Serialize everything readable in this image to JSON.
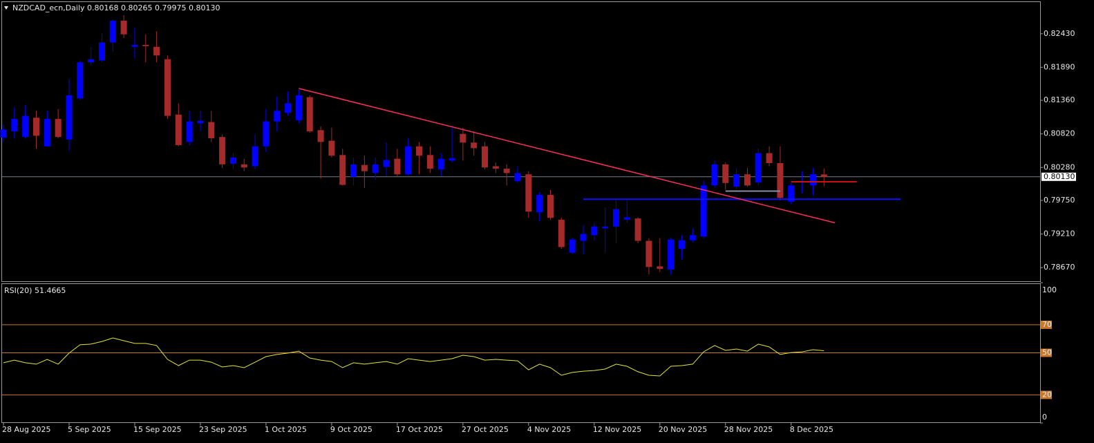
{
  "chart_data": [
    {
      "type": "candlestick",
      "title": "NZDCAD_ecn,Daily  0.80168 0.80265 0.79975 0.80130",
      "categories": [
        "28 Aug 2025",
        null,
        null,
        null,
        null,
        null,
        "5 Sep 2025",
        null,
        null,
        null,
        null,
        null,
        "15 Sep 2025",
        null,
        null,
        null,
        null,
        null,
        "23 Sep 2025",
        null,
        null,
        null,
        null,
        null,
        "1 Oct 2025",
        null,
        null,
        null,
        null,
        null,
        "9 Oct 2025",
        null,
        null,
        null,
        null,
        null,
        "17 Oct 2025",
        null,
        null,
        null,
        null,
        null,
        "27 Oct 2025",
        null,
        null,
        null,
        null,
        null,
        "4 Nov 2025",
        null,
        null,
        null,
        null,
        null,
        "12 Nov 2025",
        null,
        null,
        null,
        null,
        null,
        "20 Nov 2025",
        null,
        null,
        null,
        null,
        null,
        "28 Nov 2025",
        null,
        null,
        null,
        null,
        null,
        "8 Dec 2025",
        null,
        null,
        null
      ],
      "open": [
        0.8076,
        0.8086,
        0.8077,
        0.8108,
        0.8062,
        0.8106,
        0.8073,
        0.8139,
        0.8197,
        0.82,
        0.8229,
        0.8264,
        0.8222,
        0.8225,
        0.8222,
        0.8202,
        0.8113,
        0.8069,
        0.8099,
        0.8101,
        0.8077,
        0.8034,
        0.8033,
        0.803,
        0.8062,
        0.8102,
        0.8116,
        0.8104,
        0.8141,
        0.8088,
        0.8071,
        0.8048,
        0.8013,
        0.8032,
        0.8019,
        0.8029,
        0.8042,
        0.8017,
        0.8062,
        0.8048,
        0.8025,
        0.8039,
        0.8082,
        0.8068,
        0.8062,
        0.803,
        0.8026,
        0.8006,
        0.8017,
        0.7956,
        0.7984,
        0.7944,
        0.7891,
        0.791,
        0.7919,
        0.793,
        0.7933,
        0.7944,
        0.7946,
        0.791,
        0.7869,
        0.7864,
        0.7897,
        0.7911,
        0.7917,
        0.7999,
        0.8033,
        0.7997,
        0.8017,
        0.8004,
        0.8051,
        0.8035,
        0.7973,
        0.8004,
        0.7999,
        0.80168
      ],
      "high": [
        0.8097,
        0.8125,
        0.8128,
        0.8119,
        0.8119,
        0.8122,
        0.817,
        0.82,
        0.8222,
        0.8244,
        0.8266,
        0.8273,
        0.8253,
        0.8242,
        0.8247,
        0.8208,
        0.8131,
        0.8119,
        0.8119,
        0.8119,
        0.8081,
        0.8051,
        0.8042,
        0.8081,
        0.8122,
        0.8142,
        0.815,
        0.8153,
        0.8144,
        0.8094,
        0.8092,
        0.8058,
        0.8044,
        0.8047,
        0.8044,
        0.8068,
        0.8058,
        0.8075,
        0.8069,
        0.8062,
        0.8051,
        0.8092,
        0.8092,
        0.8086,
        0.8069,
        0.8036,
        0.8033,
        0.803,
        0.8022,
        0.7988,
        0.7992,
        0.7947,
        0.7915,
        0.7935,
        0.7939,
        0.7964,
        0.7975,
        0.7975,
        0.7948,
        0.7914,
        0.7914,
        0.7914,
        0.7919,
        0.793,
        0.8006,
        0.8039,
        0.8036,
        0.8027,
        0.8027,
        0.8059,
        0.8062,
        0.8062,
        0.8003,
        0.8022,
        0.8027,
        0.80265
      ],
      "low": [
        0.8069,
        0.8075,
        0.8075,
        0.8058,
        0.8062,
        0.8075,
        0.8055,
        0.8136,
        0.8192,
        0.8197,
        0.8214,
        0.8236,
        0.8203,
        0.8197,
        0.8197,
        0.8106,
        0.8062,
        0.8064,
        0.8086,
        0.8069,
        0.8027,
        0.8025,
        0.8022,
        0.8025,
        0.8053,
        0.8086,
        0.8111,
        0.8099,
        0.8084,
        0.801,
        0.8044,
        0.7999,
        0.7999,
        0.7995,
        0.8008,
        0.8014,
        0.8014,
        0.8015,
        0.8017,
        0.8019,
        0.8014,
        0.8036,
        0.8039,
        0.8047,
        0.8025,
        0.8019,
        0.7999,
        0.8003,
        0.7947,
        0.7941,
        0.7944,
        0.7897,
        0.7889,
        0.7888,
        0.791,
        0.7891,
        0.7906,
        0.7939,
        0.7906,
        0.7856,
        0.786,
        0.7856,
        0.788,
        0.7908,
        0.7914,
        0.7995,
        0.7992,
        0.7993,
        0.7997,
        0.7999,
        0.803,
        0.7975,
        0.7969,
        0.7986,
        0.7983,
        0.79975
      ],
      "close": [
        0.8089,
        0.8106,
        0.8111,
        0.8079,
        0.8106,
        0.8077,
        0.8144,
        0.8197,
        0.8202,
        0.8229,
        0.8264,
        0.8242,
        0.8225,
        0.8223,
        0.8208,
        0.8111,
        0.8064,
        0.8102,
        0.8103,
        0.8075,
        0.8033,
        0.8044,
        0.8028,
        0.8062,
        0.8102,
        0.8119,
        0.8131,
        0.8144,
        0.8086,
        0.8069,
        0.8047,
        0.8,
        0.8033,
        0.8022,
        0.8033,
        0.804,
        0.8017,
        0.8062,
        0.8047,
        0.8026,
        0.8042,
        0.8043,
        0.8068,
        0.8059,
        0.8028,
        0.8026,
        0.8019,
        0.8019,
        0.7957,
        0.7984,
        0.7947,
        0.79,
        0.7912,
        0.7921,
        0.7933,
        0.7933,
        0.7961,
        0.7948,
        0.791,
        0.7868,
        0.7865,
        0.7912,
        0.7911,
        0.7919,
        0.7999,
        0.8033,
        0.8003,
        0.8017,
        0.7999,
        0.8051,
        0.8035,
        0.7979,
        0.7999,
        0.8006,
        0.8017,
        0.8013
      ],
      "up_color": "#0000ff",
      "down_color": "#a52a2a",
      "ylim": [
        0.7845,
        0.8295
      ],
      "yticks": [
        {
          "value": 0.8243,
          "label": "0.82430"
        },
        {
          "value": 0.8189,
          "label": "0.81890"
        },
        {
          "value": 0.8136,
          "label": "0.81360"
        },
        {
          "value": 0.8082,
          "label": "0.80820"
        },
        {
          "value": 0.8028,
          "label": "0.80280"
        },
        {
          "value": 0.7975,
          "label": "0.79750"
        },
        {
          "value": 0.7921,
          "label": "0.79210"
        },
        {
          "value": 0.7867,
          "label": "0.78670"
        }
      ],
      "last_price": {
        "value": 0.8013,
        "label": "0.80130",
        "color": "#708090"
      },
      "lines": [
        {
          "x": [
            27,
            76
          ],
          "y": [
            0.8155,
            0.7939
          ],
          "color": "#ff2d5a"
        }
      ],
      "hlines": [
        {
          "value": 0.7977,
          "from": 53,
          "to": 82,
          "color": "#1010ff"
        },
        {
          "value": 0.8005,
          "from": 72,
          "to": 78,
          "color": "#cc1010"
        },
        {
          "value": 0.799,
          "from": 66,
          "to": 71,
          "color": "#8c8ca8"
        }
      ]
    },
    {
      "type": "line",
      "title": "RSI(20) 51.4665",
      "values": [
        42.9,
        44.8,
        42.9,
        41.9,
        45.3,
        41.9,
        49.8,
        55.7,
        56.2,
        58.1,
        60.6,
        58.6,
        56.7,
        56.7,
        55.2,
        45.3,
        40.9,
        44.8,
        44.8,
        43.3,
        39.9,
        40.9,
        39.4,
        43.3,
        47.3,
        48.8,
        49.8,
        51.2,
        46.3,
        44.8,
        43.8,
        39.4,
        42.9,
        41.9,
        42.9,
        43.8,
        41.9,
        45.8,
        44.8,
        43.8,
        44.8,
        45.8,
        48.3,
        47.3,
        44.8,
        45.3,
        44.8,
        44.3,
        37.9,
        41.9,
        39.4,
        34.0,
        36.0,
        36.9,
        37.4,
        38.4,
        41.9,
        40.4,
        36.5,
        34.0,
        33.5,
        40.4,
        40.9,
        41.9,
        50.7,
        55.2,
        51.7,
        52.7,
        51.2,
        56.2,
        54.2,
        48.8,
        50.2,
        50.7,
        52.2,
        51.4665
      ],
      "color": "#e6e632",
      "ylim": [
        0,
        100
      ],
      "yticks": [
        100,
        70,
        50,
        20,
        0
      ],
      "levels": [
        70,
        50,
        20
      ],
      "level_color": "#c8782a"
    }
  ]
}
